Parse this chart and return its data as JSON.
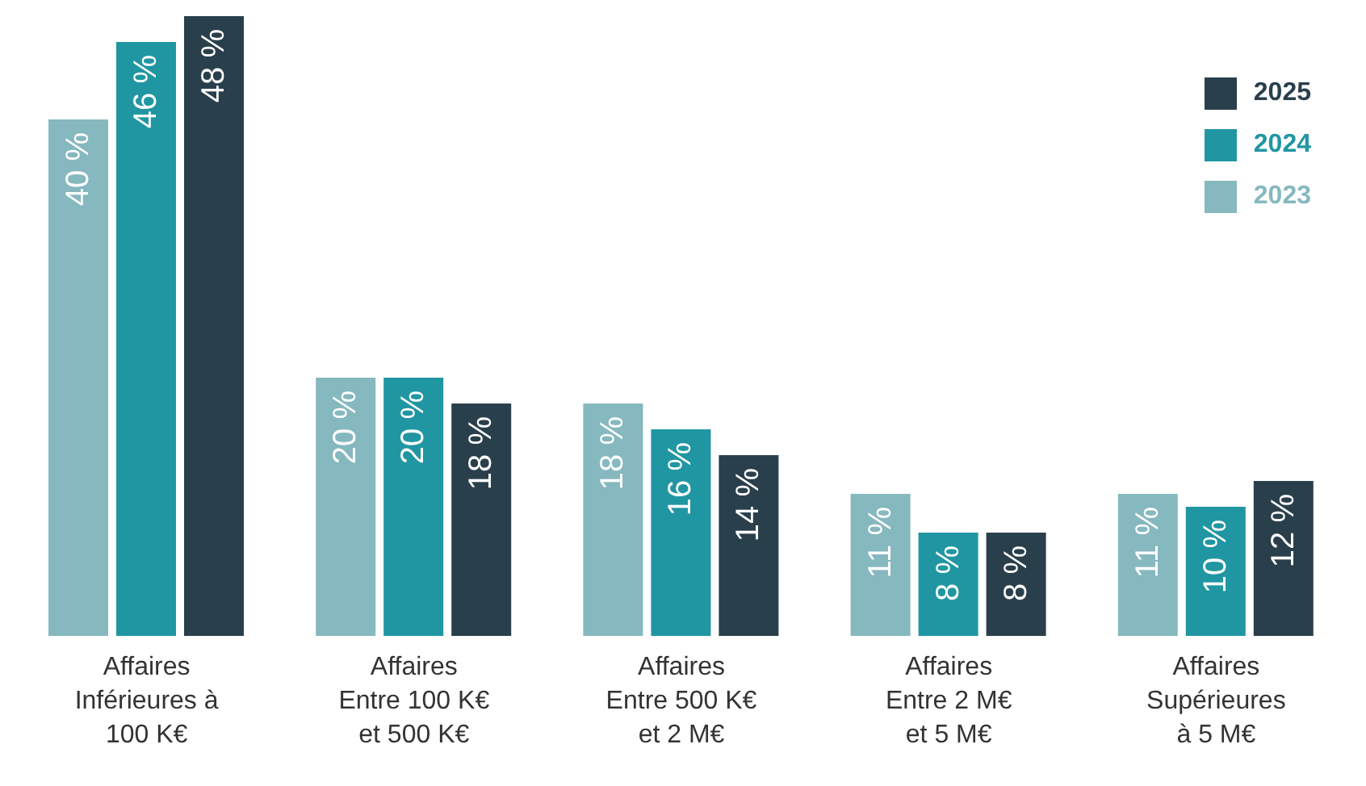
{
  "chart_data": {
    "type": "bar",
    "categories": [
      "Affaires\nInférieures à\n100 K€",
      "Affaires\nEntre 100 K€\net 500 K€",
      "Affaires\nEntre 500 K€\net 2 M€",
      "Affaires\nEntre 2 M€\net 5 M€",
      "Affaires\nSupérieures\nà 5 M€"
    ],
    "series": [
      {
        "name": "2023",
        "color": "#86b8bf",
        "values": [
          40,
          20,
          18,
          11,
          11
        ],
        "value_labels": [
          "40 %",
          "20 %",
          "18 %",
          "11 %",
          "11 %"
        ]
      },
      {
        "name": "2024",
        "color": "#2196a3",
        "values": [
          46,
          20,
          16,
          8,
          10
        ],
        "value_labels": [
          "46 %",
          "20 %",
          "16 %",
          "8 %",
          "10 %"
        ]
      },
      {
        "name": "2025",
        "color": "#2a3f4c",
        "values": [
          48,
          18,
          14,
          8,
          12
        ],
        "value_labels": [
          "48 %",
          "18 %",
          "14 %",
          "8 %",
          "12 %"
        ]
      }
    ],
    "legend": "top right"
  }
}
